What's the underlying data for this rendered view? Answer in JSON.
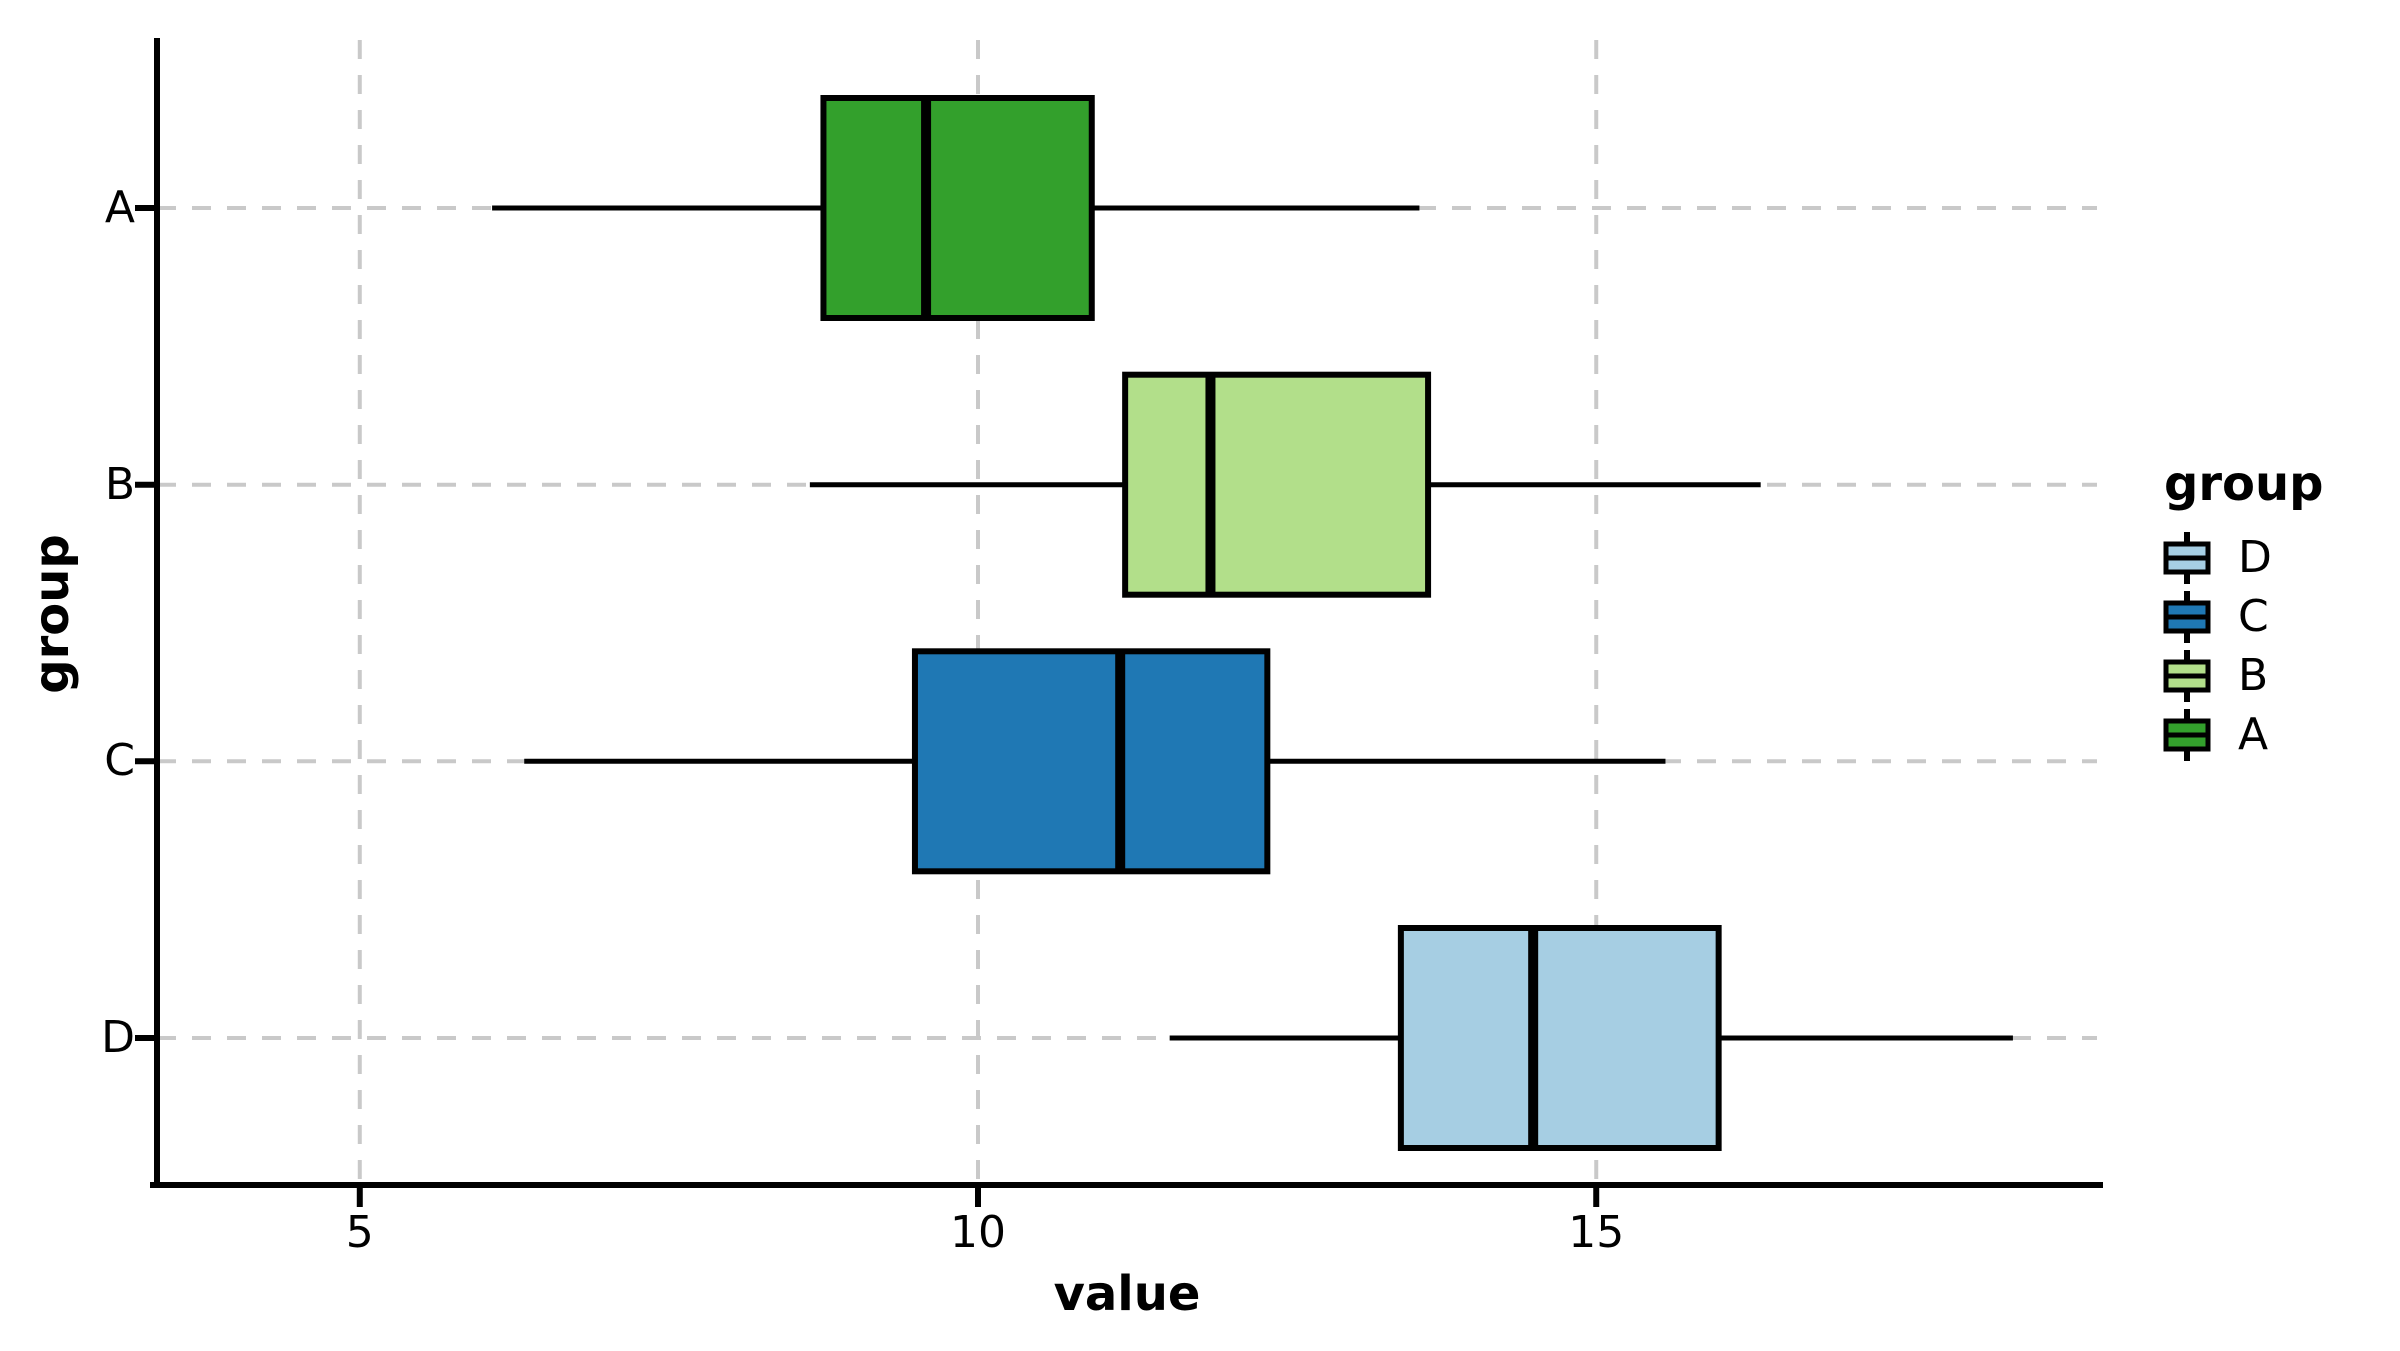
{
  "chart_data": {
    "type": "boxplot",
    "orientation": "horizontal",
    "title": "",
    "xlabel": "value",
    "ylabel": "group",
    "categories": [
      "A",
      "B",
      "C",
      "D"
    ],
    "series": [
      {
        "name": "A",
        "min": 6.07,
        "q1": 8.75,
        "median": 9.58,
        "q3": 10.92,
        "max": 13.57,
        "color": "#33a02c"
      },
      {
        "name": "B",
        "min": 8.64,
        "q1": 11.19,
        "median": 11.88,
        "q3": 13.64,
        "max": 16.33,
        "color": "#b2df8a"
      },
      {
        "name": "C",
        "min": 6.33,
        "q1": 9.49,
        "median": 11.15,
        "q3": 12.34,
        "max": 15.56,
        "color": "#1f78b4"
      },
      {
        "name": "D",
        "min": 11.55,
        "q1": 13.42,
        "median": 14.49,
        "q3": 15.99,
        "max": 18.37,
        "color": "#a6cee3"
      }
    ],
    "x_ticks": {
      "values": [
        5,
        10,
        15
      ],
      "labels": [
        "5",
        "10",
        "15"
      ]
    },
    "xlim": [
      3.36,
      19.05
    ],
    "grid": {
      "visible": true,
      "style": "dashed",
      "color": "#c9c9c9"
    },
    "box_edge_color": "#000000",
    "median_color": "#000000",
    "whisker_color": "#000000",
    "legend": {
      "position": "right",
      "title": "group",
      "entries": [
        {
          "label": "D",
          "color": "#a6cee3"
        },
        {
          "label": "C",
          "color": "#1f78b4"
        },
        {
          "label": "B",
          "color": "#b2df8a"
        },
        {
          "label": "A",
          "color": "#33a02c"
        }
      ]
    }
  }
}
